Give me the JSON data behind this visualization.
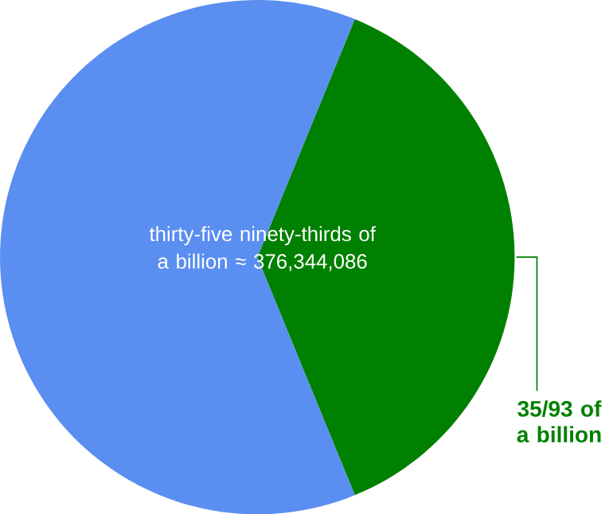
{
  "chart_data": {
    "type": "pie",
    "categories": [
      "35/93 of a billion",
      null
    ],
    "values": [
      37.634,
      62.366
    ],
    "colors": [
      "#008000",
      "#5a8ef0"
    ],
    "annotations": [
      "thirty-five ninety-thirds of a billion ≈ 376,344,086"
    ]
  }
}
